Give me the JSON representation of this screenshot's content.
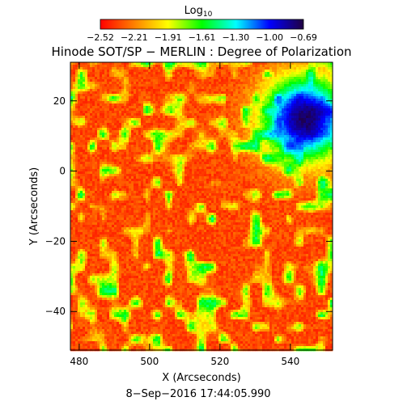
{
  "chart_data": {
    "type": "heatmap",
    "title": "Hinode SOT/SP − MERLIN : Degree of Polarization",
    "xlabel": "X (Arcseconds)",
    "ylabel": "Y (Arcseconds)",
    "timestamp": "8−Sep−2016 17:44:05.990",
    "colorbar": {
      "title": "Log",
      "title_sub": "10",
      "ticks": [
        "−2.52",
        "−2.21",
        "−1.91",
        "−1.61",
        "−1.30",
        "−1.00",
        "−0.69"
      ],
      "range": [
        -2.52,
        -0.69
      ],
      "colormap": [
        "#ff0000",
        "#ff8000",
        "#ffff00",
        "#00ff00",
        "#00ffff",
        "#0000ff",
        "#200040"
      ]
    },
    "xlim": [
      477.5,
      552
    ],
    "ylim": [
      -51,
      31
    ],
    "xticks": [
      480,
      500,
      520,
      540
    ],
    "yticks": [
      -40,
      -20,
      0,
      20
    ],
    "image_features": {
      "background_level": -2.35,
      "sunspot_center": [
        544,
        15
      ],
      "sunspot_radius_arcsec": 12,
      "sunspot_level": -0.75
    }
  }
}
